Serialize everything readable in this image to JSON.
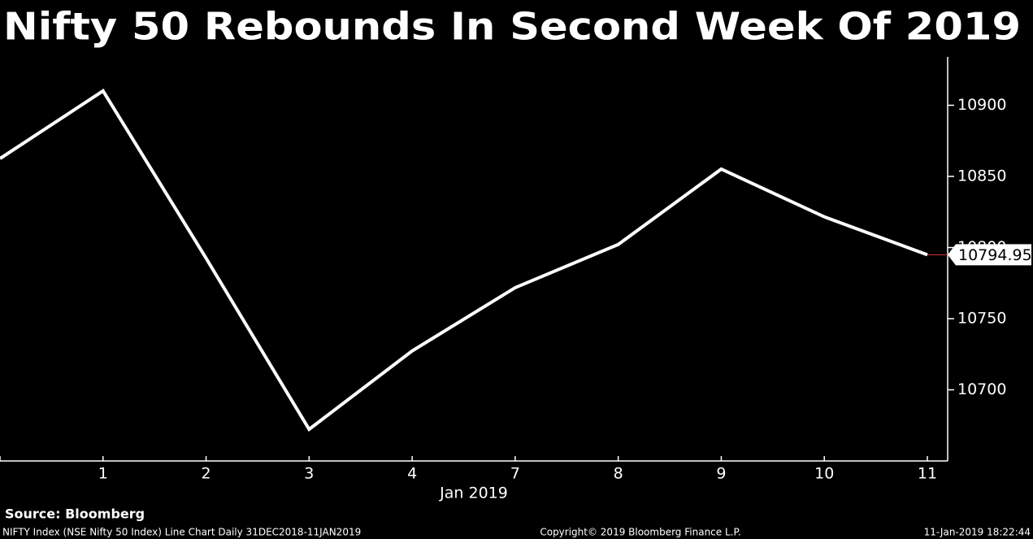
{
  "chart_data": {
    "type": "line",
    "title": "Nifty 50 Rebounds In Second Week Of 2019",
    "categories": [
      null,
      "1",
      "2",
      "3",
      "4",
      "7",
      "8",
      "9",
      "10",
      "11"
    ],
    "values": [
      10862.55,
      10910.1,
      10792.5,
      10672.25,
      10727.35,
      10771.8,
      10802.15,
      10855.15,
      10821.6,
      10794.95
    ],
    "color": "#ffffff",
    "x_label": "Jan 2019",
    "ylim": [
      10650,
      10934
    ],
    "yticks": [
      10700,
      10750,
      10800,
      10850,
      10900
    ],
    "grid": false,
    "source": "Source: Bloomberg",
    "footer_left": "NIFTY Index (NSE Nifty 50 Index) Line Chart  Daily 31DEC2018-11JAN2019",
    "footer_center": "Copyright© 2019 Bloomberg Finance L.P.",
    "footer_right": "11-Jan-2019 18:22:44"
  }
}
